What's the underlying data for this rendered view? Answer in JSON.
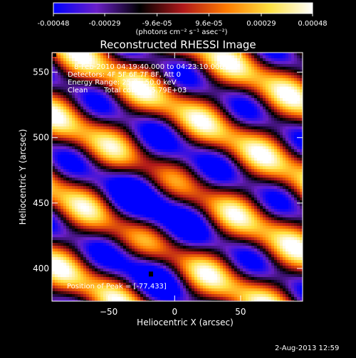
{
  "colorbar": {
    "tick_labels": [
      "-0.00048",
      "-0.00029",
      "-9.6e-05",
      "9.6e-05",
      "0.00029",
      "0.00048"
    ],
    "unit_label": "(photons cm⁻² s⁻¹ asec⁻²)",
    "range": [
      -0.00048,
      0.00048
    ],
    "colors": [
      "#0000ff",
      "#6a1fc8",
      "#000000",
      "#b0181a",
      "#ff7a00",
      "#ffe040",
      "#ffffff"
    ]
  },
  "chart_data": {
    "type": "heatmap",
    "title": "Reconstructed RHESSI Image",
    "xlabel": "Heliocentric X (arcsec)",
    "ylabel": "Heliocentric Y (arcsec)",
    "xlim": [
      -93,
      97
    ],
    "ylim": [
      375,
      565
    ],
    "xticks": [
      -50,
      0,
      50
    ],
    "yticks": [
      400,
      450,
      500,
      550
    ],
    "peak": [
      -77,
      433
    ],
    "annotations": {
      "time": "8-Feb-2010 04:19:40.000 to 04:23:10.000",
      "detectors": "Detectors: 4F 5F 6F 7F 8F, Att 0",
      "energy": "Energy Range: 25.0 - 50.0 keV",
      "method": "Clean",
      "counts": "Total counts: 5.79E+03",
      "peak_text": "Position of Peak = [-77,433]"
    }
  },
  "footer": {
    "date": "2-Aug-2013 12:59"
  }
}
